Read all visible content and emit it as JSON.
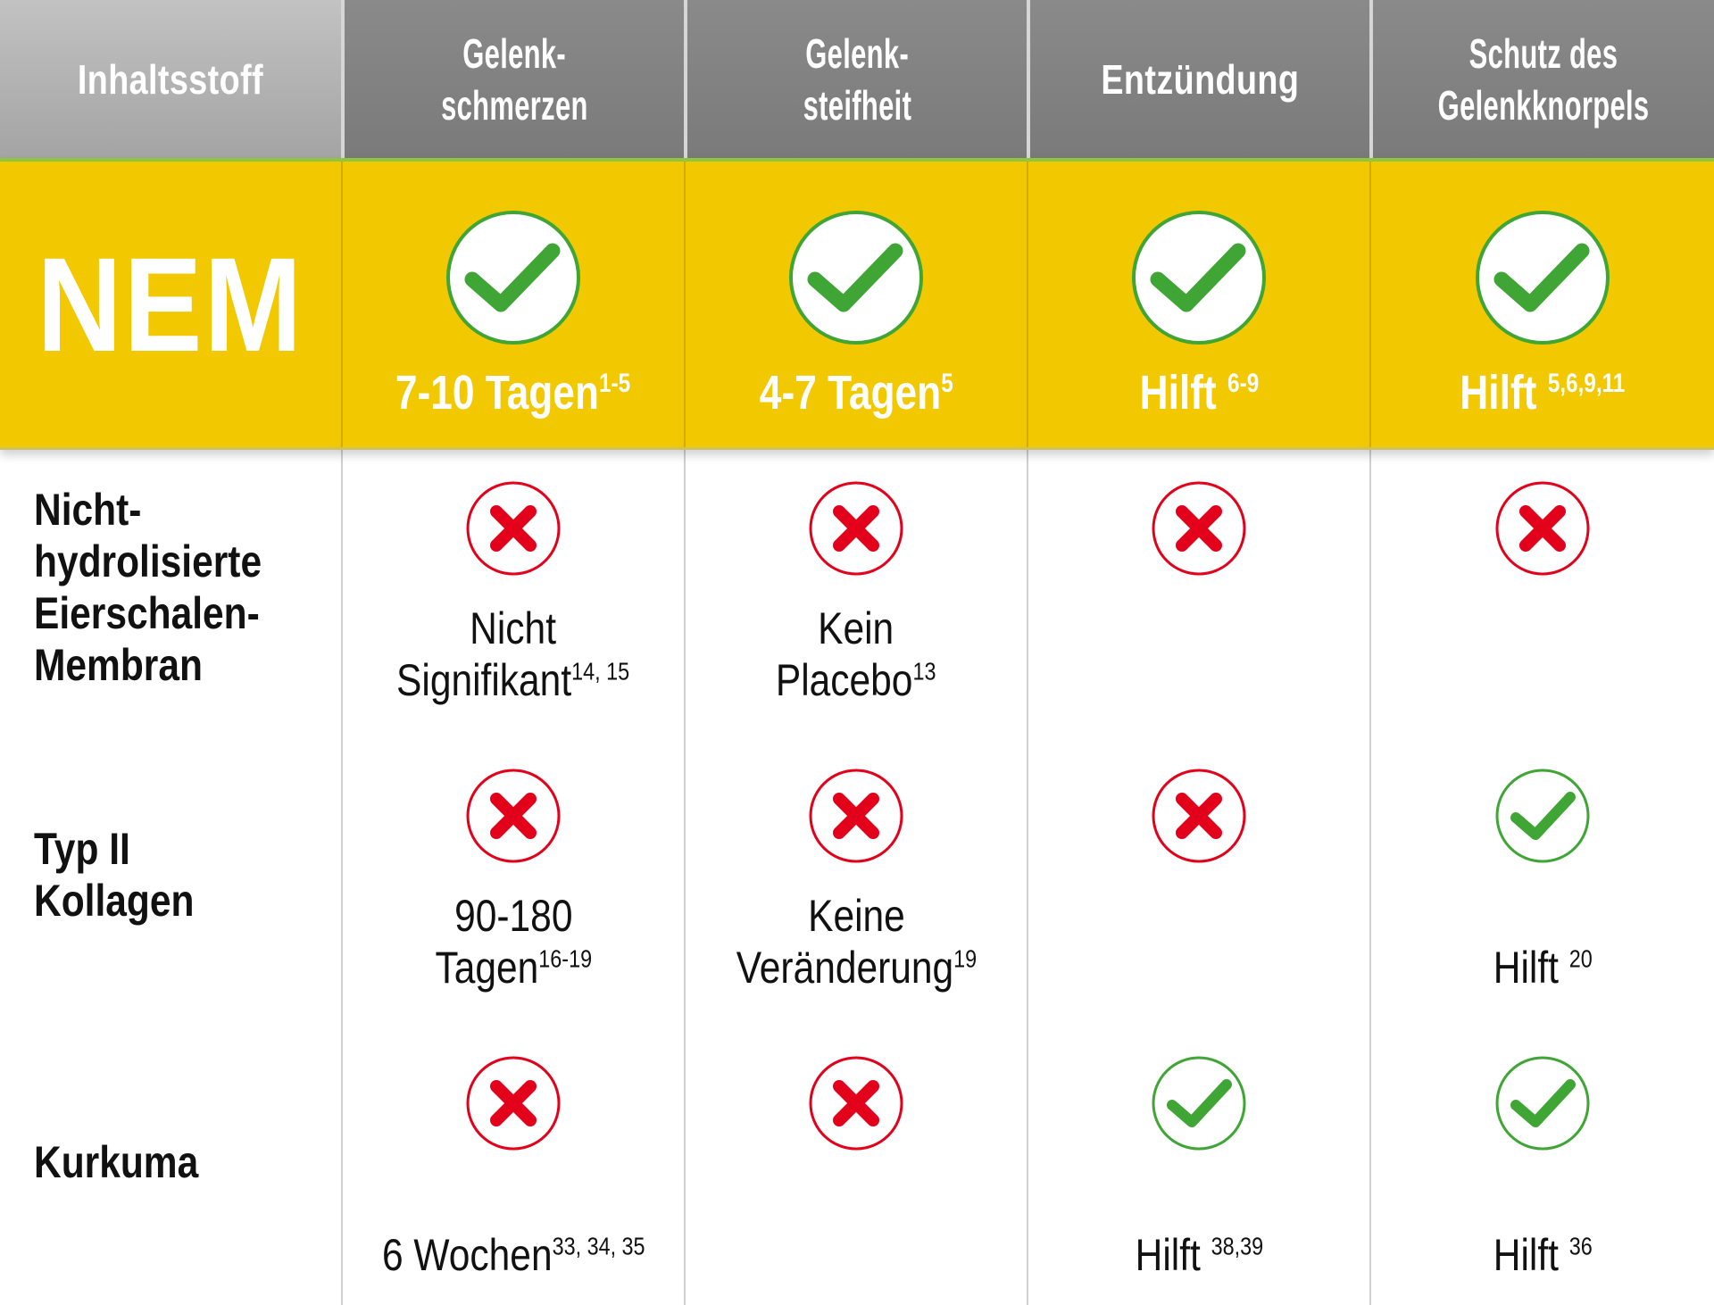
{
  "header": {
    "ingredient": "Inhaltsstoff",
    "columns": [
      [
        "Gelenk-",
        "schmerzen"
      ],
      [
        "Gelenk-",
        "steifheit"
      ],
      [
        "Entzündung"
      ],
      [
        "Schutz des",
        "Gelenkknorpels"
      ]
    ]
  },
  "colors": {
    "yellow": "#f2c800",
    "check_green": "#3fa535",
    "cross_red": "#e2001a",
    "header_gray": "#808080"
  },
  "rows": [
    {
      "name": "NEM",
      "cells": [
        {
          "icon": "check-icon",
          "text": "7-10 Tagen",
          "ref": "1-5"
        },
        {
          "icon": "check-icon",
          "text": "4-7 Tagen",
          "ref": "5"
        },
        {
          "icon": "check-icon",
          "text": "Hilft ",
          "ref": "6-9"
        },
        {
          "icon": "check-icon",
          "text": "Hilft ",
          "ref": "5,6,9,11"
        }
      ]
    },
    {
      "name": [
        "Nicht-",
        "hydrolisierte",
        "Eierschalen-",
        "Membran"
      ],
      "cells": [
        {
          "icon": "cross-icon",
          "text1": "Nicht",
          "text2": "Signifikant",
          "ref": "14, 15"
        },
        {
          "icon": "cross-icon",
          "text1": "Kein",
          "text2": "Placebo",
          "ref": "13"
        },
        {
          "icon": "cross-icon"
        },
        {
          "icon": "cross-icon"
        }
      ]
    },
    {
      "name": [
        "Typ II",
        "Kollagen"
      ],
      "cells": [
        {
          "icon": "cross-icon",
          "text1": "90-180",
          "text2": "Tagen",
          "ref": "16-19"
        },
        {
          "icon": "cross-icon",
          "text1": "Keine",
          "text2": "Veränderung",
          "ref": "19"
        },
        {
          "icon": "cross-icon"
        },
        {
          "icon": "check-icon",
          "text2": "Hilft ",
          "ref": "20"
        }
      ]
    },
    {
      "name": [
        "Kurkuma"
      ],
      "cells": [
        {
          "icon": "cross-icon",
          "text2": "6 Wochen",
          "ref": "33, 34, 35"
        },
        {
          "icon": "cross-icon"
        },
        {
          "icon": "check-icon",
          "text2": "Hilft ",
          "ref": "38,39"
        },
        {
          "icon": "check-icon",
          "text2": "Hilft ",
          "ref": "36"
        }
      ]
    }
  ]
}
